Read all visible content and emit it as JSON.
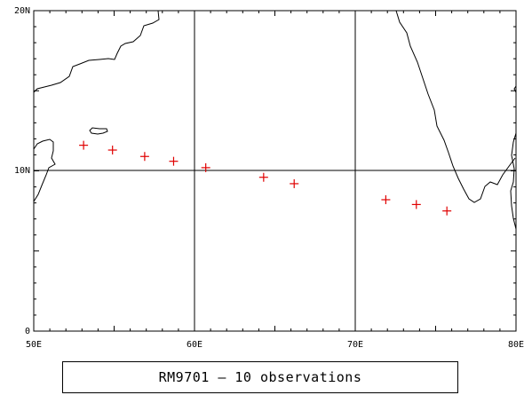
{
  "chart_data": {
    "type": "scatter",
    "title": "",
    "x_ticks": [
      "50E",
      "60E",
      "70E",
      "80E"
    ],
    "y_ticks": [
      "0",
      "10N",
      "20N"
    ],
    "xlim": [
      50,
      80
    ],
    "ylim": [
      0,
      20
    ],
    "grid": true,
    "marker": "+",
    "marker_color": "#e00000",
    "coastline_color": "#000000",
    "points": [
      {
        "lon": 53.1,
        "lat": 11.6
      },
      {
        "lon": 54.9,
        "lat": 11.3
      },
      {
        "lon": 56.9,
        "lat": 10.9
      },
      {
        "lon": 58.7,
        "lat": 10.6
      },
      {
        "lon": 60.7,
        "lat": 10.2
      },
      {
        "lon": 64.3,
        "lat": 9.6
      },
      {
        "lon": 66.2,
        "lat": 9.2
      },
      {
        "lon": 71.9,
        "lat": 8.2
      },
      {
        "lon": 73.8,
        "lat": 7.9
      },
      {
        "lon": 75.7,
        "lat": 7.5
      }
    ]
  },
  "caption": "RM9701 — 10 observations"
}
